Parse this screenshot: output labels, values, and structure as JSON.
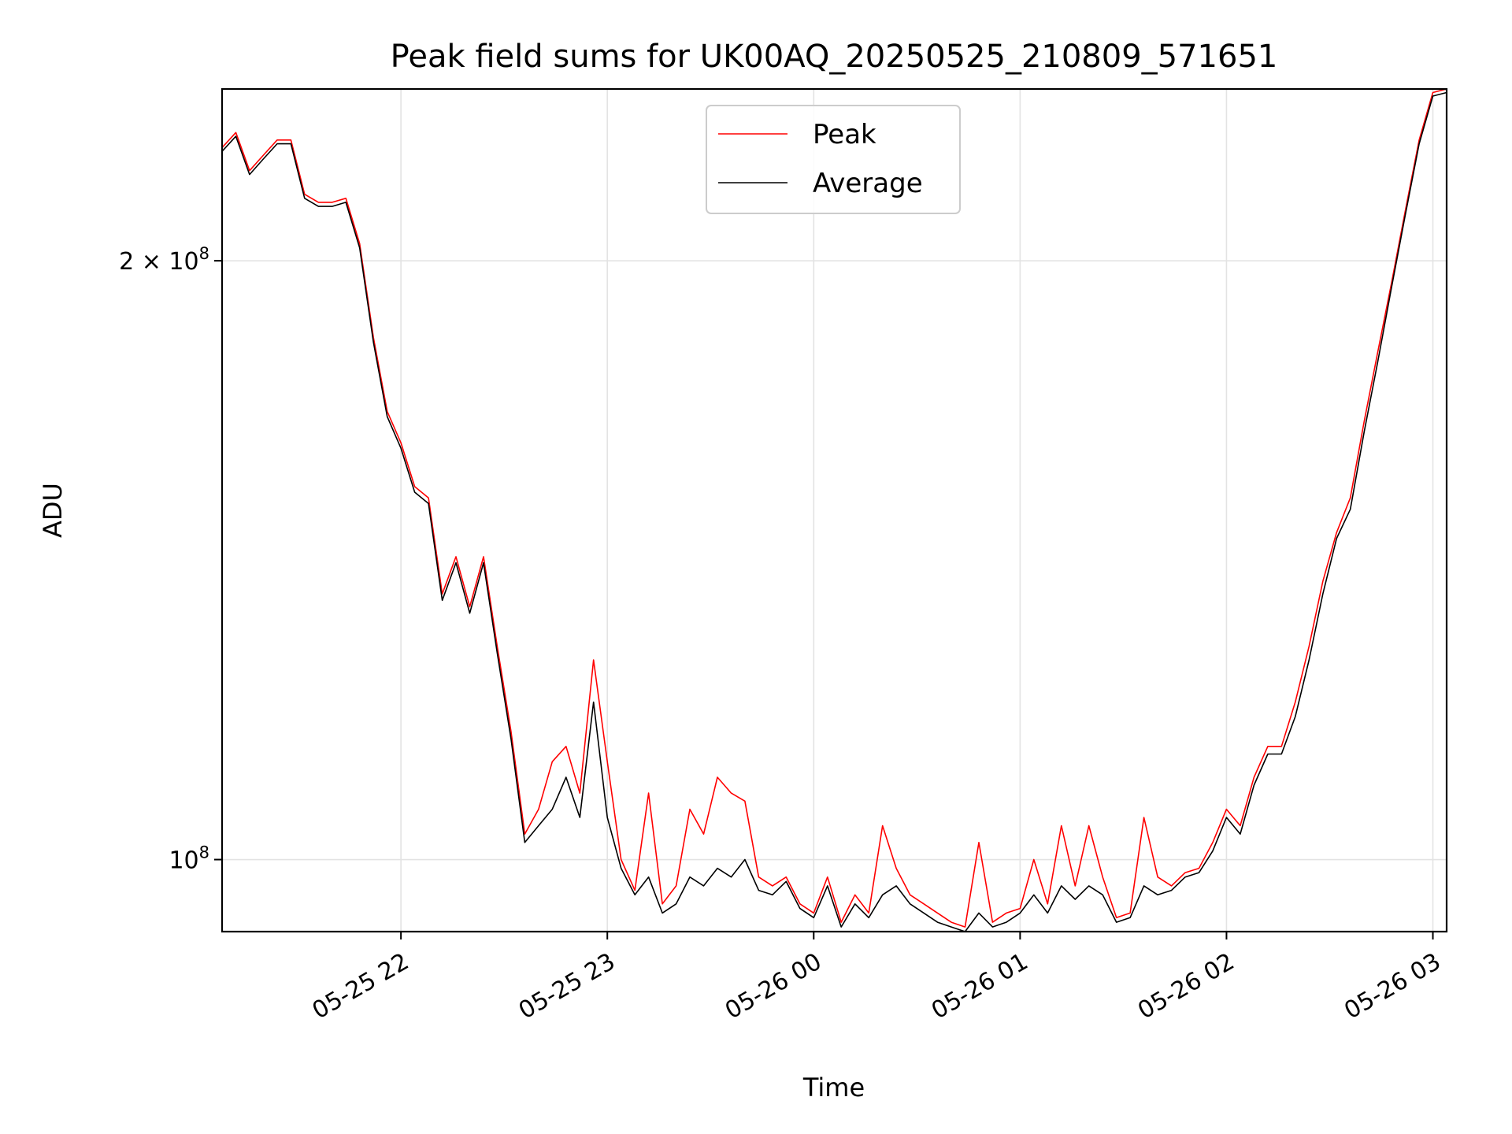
{
  "chart_data": {
    "type": "line",
    "title": "Peak field sums for UK00AQ_20250525_210809_571651",
    "xlabel": "Time",
    "ylabel": "ADU",
    "y_scale": "log",
    "xlim": [
      "2025-05-25 21:08",
      "2025-05-26 03:04"
    ],
    "ylim": [
      92000000,
      244000000
    ],
    "x_ticks": [
      {
        "t": "2025-05-25 22:00",
        "label": "05-25 22"
      },
      {
        "t": "2025-05-25 23:00",
        "label": "05-25 23"
      },
      {
        "t": "2025-05-26 00:00",
        "label": "05-26 00"
      },
      {
        "t": "2025-05-26 01:00",
        "label": "05-26 01"
      },
      {
        "t": "2025-05-26 02:00",
        "label": "05-26 02"
      },
      {
        "t": "2025-05-26 03:00",
        "label": "05-26 03"
      }
    ],
    "y_ticks": [
      {
        "value": 100000000,
        "mantissa": "10",
        "exponent": "8"
      },
      {
        "value": 200000000,
        "mantissa": "2 × 10",
        "exponent": "8"
      }
    ],
    "grid": true,
    "legend_position": "top-center",
    "x": [
      "2025-05-25 21:08",
      "2025-05-25 21:12",
      "2025-05-25 21:16",
      "2025-05-25 21:20",
      "2025-05-25 21:24",
      "2025-05-25 21:28",
      "2025-05-25 21:32",
      "2025-05-25 21:36",
      "2025-05-25 21:40",
      "2025-05-25 21:44",
      "2025-05-25 21:48",
      "2025-05-25 21:52",
      "2025-05-25 21:56",
      "2025-05-25 22:00",
      "2025-05-25 22:04",
      "2025-05-25 22:08",
      "2025-05-25 22:12",
      "2025-05-25 22:16",
      "2025-05-25 22:20",
      "2025-05-25 22:24",
      "2025-05-25 22:28",
      "2025-05-25 22:32",
      "2025-05-25 22:36",
      "2025-05-25 22:40",
      "2025-05-25 22:44",
      "2025-05-25 22:48",
      "2025-05-25 22:52",
      "2025-05-25 22:56",
      "2025-05-25 23:00",
      "2025-05-25 23:04",
      "2025-05-25 23:08",
      "2025-05-25 23:12",
      "2025-05-25 23:16",
      "2025-05-25 23:20",
      "2025-05-25 23:24",
      "2025-05-25 23:28",
      "2025-05-25 23:32",
      "2025-05-25 23:36",
      "2025-05-25 23:40",
      "2025-05-25 23:44",
      "2025-05-25 23:48",
      "2025-05-25 23:52",
      "2025-05-25 23:56",
      "2025-05-26 00:00",
      "2025-05-26 00:04",
      "2025-05-26 00:08",
      "2025-05-26 00:12",
      "2025-05-26 00:16",
      "2025-05-26 00:20",
      "2025-05-26 00:24",
      "2025-05-26 00:28",
      "2025-05-26 00:32",
      "2025-05-26 00:36",
      "2025-05-26 00:40",
      "2025-05-26 00:44",
      "2025-05-26 00:48",
      "2025-05-26 00:52",
      "2025-05-26 00:56",
      "2025-05-26 01:00",
      "2025-05-26 01:04",
      "2025-05-26 01:08",
      "2025-05-26 01:12",
      "2025-05-26 01:16",
      "2025-05-26 01:20",
      "2025-05-26 01:24",
      "2025-05-26 01:28",
      "2025-05-26 01:32",
      "2025-05-26 01:36",
      "2025-05-26 01:40",
      "2025-05-26 01:44",
      "2025-05-26 01:48",
      "2025-05-26 01:52",
      "2025-05-26 01:56",
      "2025-05-26 02:00",
      "2025-05-26 02:04",
      "2025-05-26 02:08",
      "2025-05-26 02:12",
      "2025-05-26 02:16",
      "2025-05-26 02:20",
      "2025-05-26 02:24",
      "2025-05-26 02:28",
      "2025-05-26 02:32",
      "2025-05-26 02:36",
      "2025-05-26 02:40",
      "2025-05-26 02:44",
      "2025-05-26 02:48",
      "2025-05-26 02:52",
      "2025-05-26 02:56",
      "2025-05-26 03:00",
      "2025-05-26 03:04"
    ],
    "series": [
      {
        "name": "Peak",
        "color": "#ff0000",
        "values": [
          228000000,
          232000000,
          222000000,
          226000000,
          230000000,
          230000000,
          216000000,
          214000000,
          214000000,
          215000000,
          204000000,
          183000000,
          168000000,
          162000000,
          154000000,
          152000000,
          136000000,
          142000000,
          134000000,
          142000000,
          128000000,
          116000000,
          103000000,
          106000000,
          112000000,
          114000000,
          108000000,
          126000000,
          112000000,
          100000000,
          96500000,
          108000000,
          95000000,
          97000000,
          106000000,
          103000000,
          110000000,
          108000000,
          107000000,
          98000000,
          97000000,
          98000000,
          95000000,
          94000000,
          98000000,
          93000000,
          96000000,
          94000000,
          104000000,
          99000000,
          96000000,
          95000000,
          94000000,
          93000000,
          92500000,
          102000000,
          93000000,
          94000000,
          94500000,
          100000000,
          95000000,
          104000000,
          97000000,
          104000000,
          98000000,
          93500000,
          94000000,
          105000000,
          98000000,
          97000000,
          98500000,
          99000000,
          102000000,
          106000000,
          104000000,
          110000000,
          114000000,
          114000000,
          120000000,
          128000000,
          138000000,
          146000000,
          152000000,
          166000000,
          180000000,
          195000000,
          212000000,
          230000000,
          243000000,
          244000000
        ]
      },
      {
        "name": "Average",
        "color": "#000000",
        "values": [
          227000000,
          231000000,
          221000000,
          225000000,
          229000000,
          229000000,
          215000000,
          213000000,
          213000000,
          214000000,
          203000000,
          182000000,
          167000000,
          161000000,
          153000000,
          151000000,
          135000000,
          141000000,
          133000000,
          141000000,
          127000000,
          115000000,
          102000000,
          104000000,
          106000000,
          110000000,
          105000000,
          120000000,
          105000000,
          99000000,
          96000000,
          98000000,
          94000000,
          95000000,
          98000000,
          97000000,
          99000000,
          98000000,
          100000000,
          96500000,
          96000000,
          97500000,
          94500000,
          93500000,
          97000000,
          92500000,
          95000000,
          93500000,
          96000000,
          97000000,
          95000000,
          94000000,
          93000000,
          92500000,
          92000000,
          94000000,
          92500000,
          93000000,
          94000000,
          96000000,
          94000000,
          97000000,
          95500000,
          97000000,
          96000000,
          93000000,
          93500000,
          97000000,
          96000000,
          96500000,
          98000000,
          98500000,
          101000000,
          105000000,
          103000000,
          109000000,
          113000000,
          113000000,
          118000000,
          126000000,
          136000000,
          145000000,
          150000000,
          164000000,
          178000000,
          194000000,
          211000000,
          229000000,
          242000000,
          243000000
        ]
      }
    ]
  }
}
